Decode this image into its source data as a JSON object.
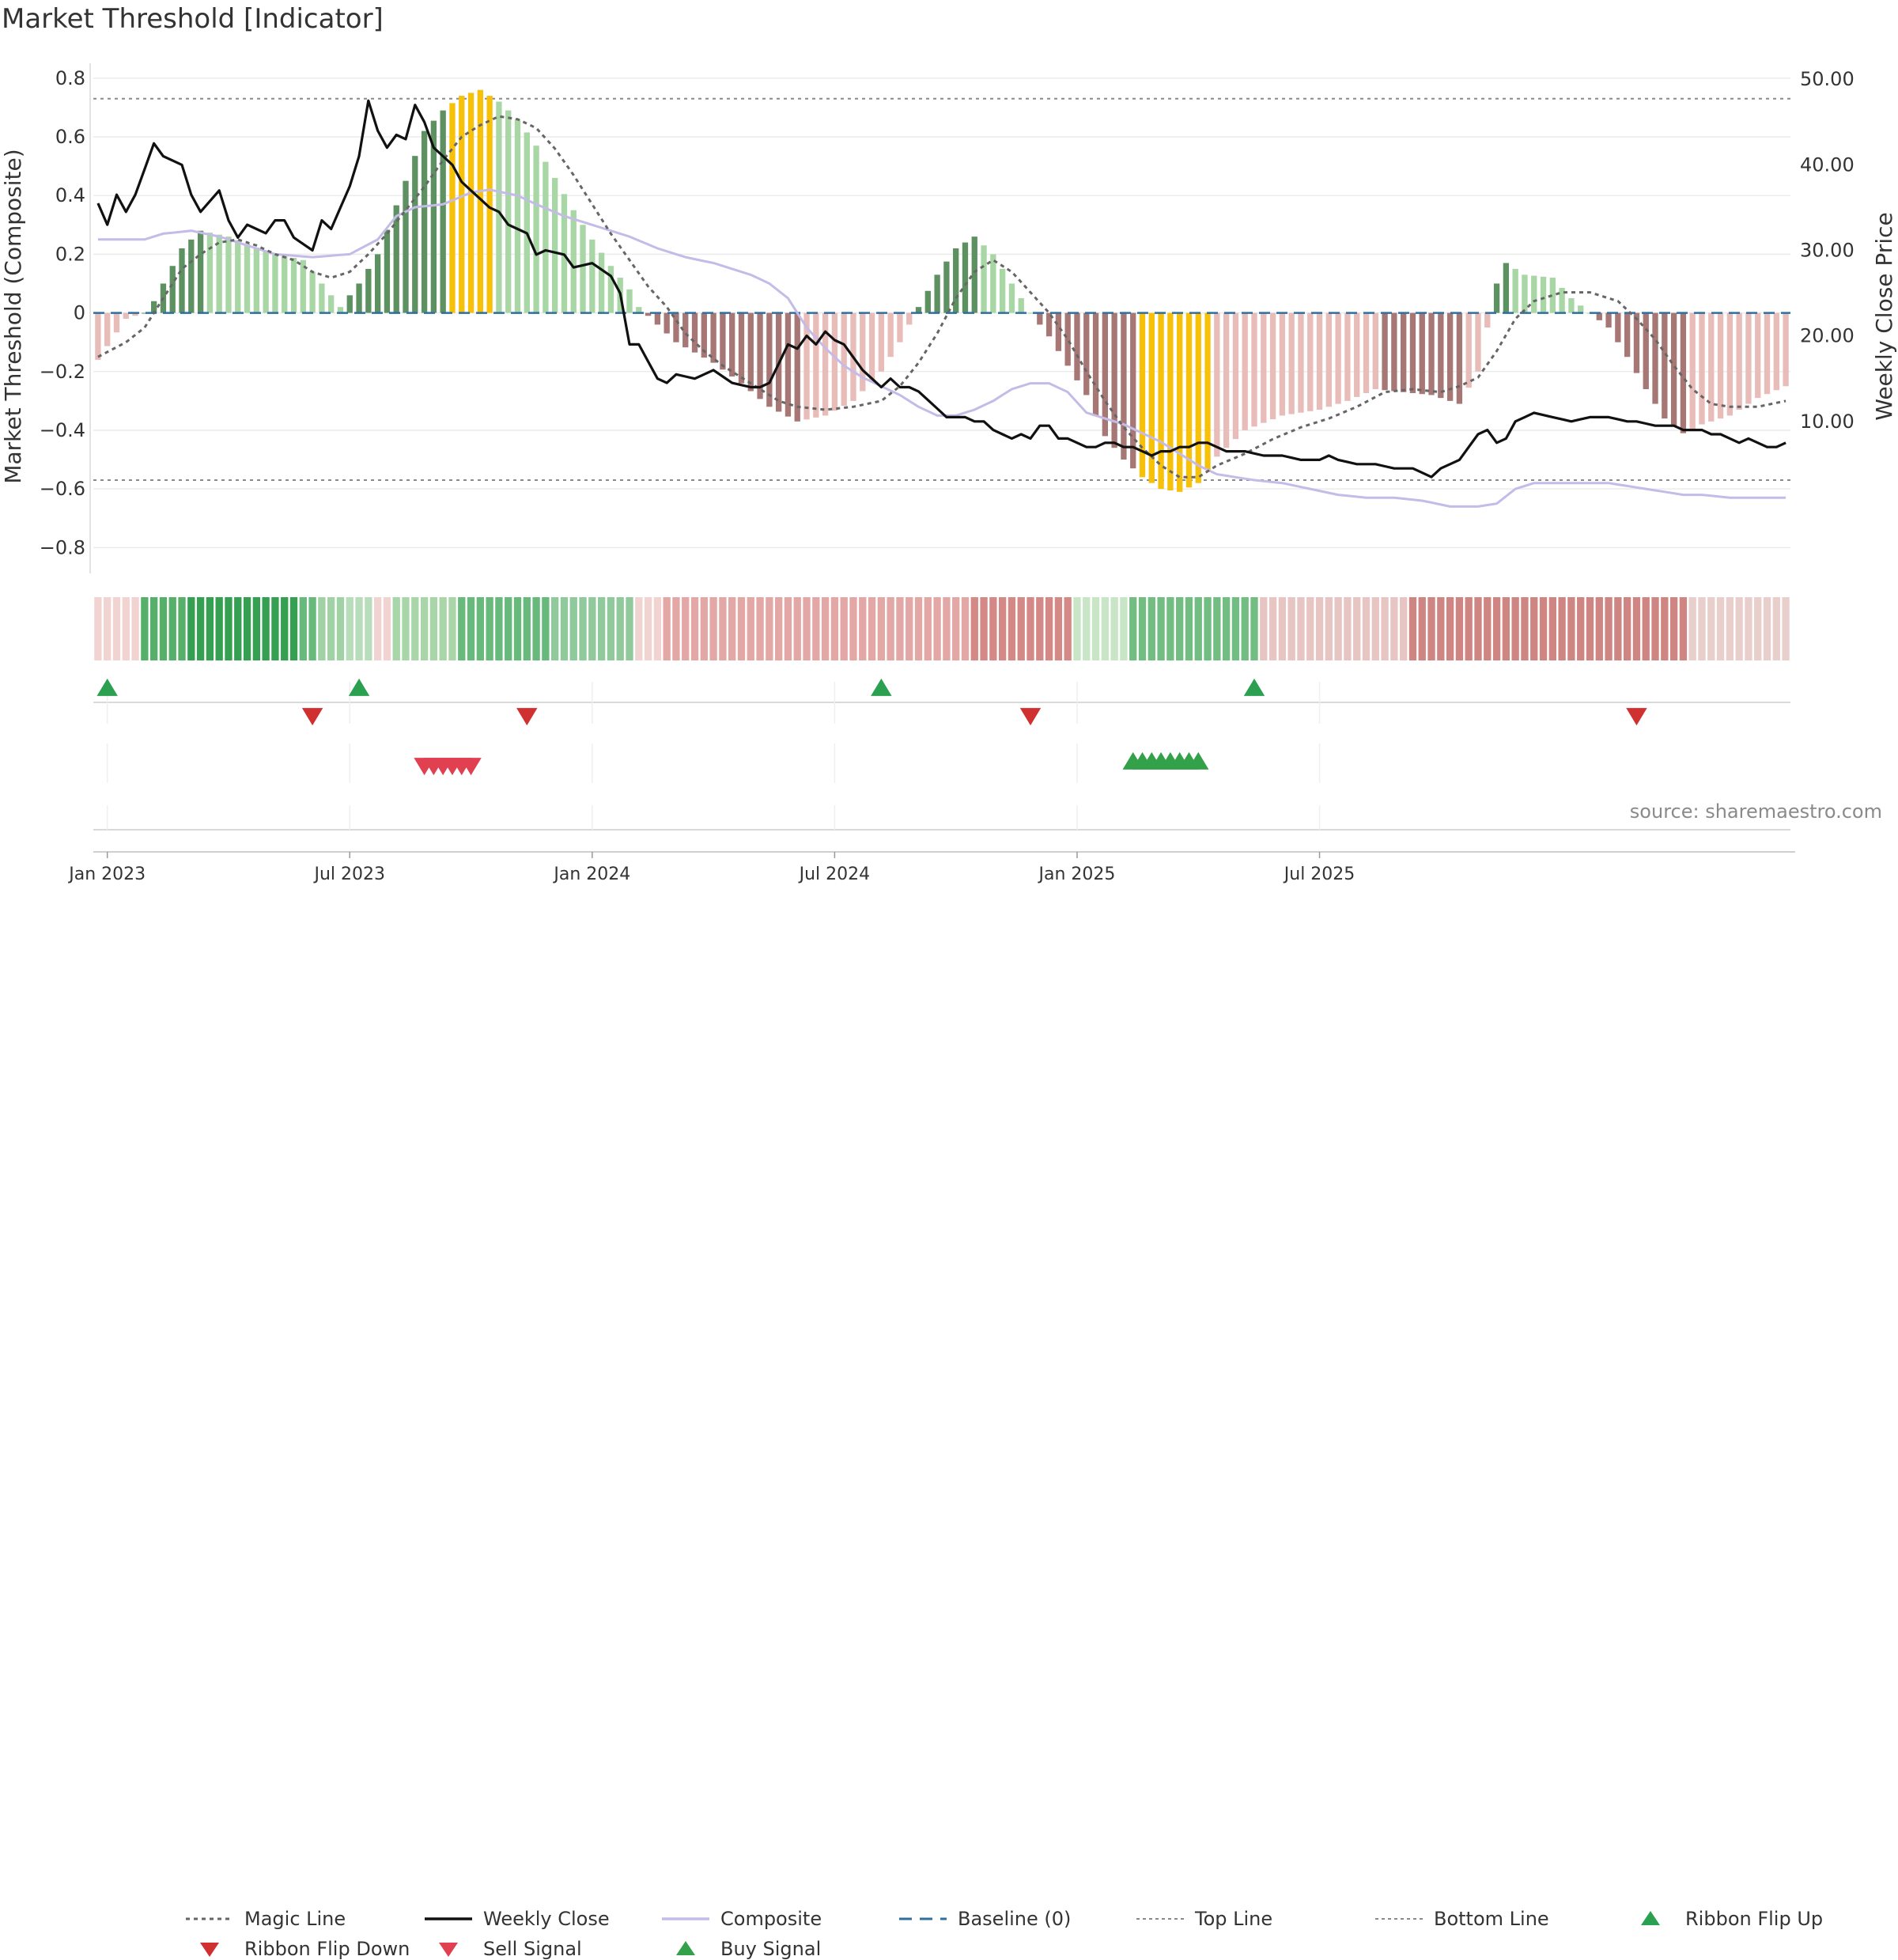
{
  "title": "Market Threshold [Indicator]",
  "source": "source: sharemaestro.com",
  "legend": [
    {
      "label": "Magic Line",
      "kind": "dotted",
      "color": "#666666"
    },
    {
      "label": "Weekly Close",
      "kind": "solid",
      "color": "#111111"
    },
    {
      "label": "Composite",
      "kind": "solid",
      "color": "#c4bbe8"
    },
    {
      "label": "Baseline (0)",
      "kind": "dashed",
      "color": "#2f6f9f"
    },
    {
      "label": "Top Line",
      "kind": "dotted-thin",
      "color": "#8a8a8a"
    },
    {
      "label": "Bottom Line",
      "kind": "dotted-thin",
      "color": "#8a8a8a"
    },
    {
      "label": "Ribbon Flip Up",
      "kind": "tri-up",
      "color": "#2aa050"
    },
    {
      "label": "Ribbon Flip Down",
      "kind": "tri-down",
      "color": "#d03030"
    },
    {
      "label": "Sell Signal",
      "kind": "tri-down",
      "color": "#e04050"
    },
    {
      "label": "Buy Signal",
      "kind": "tri-up",
      "color": "#33a04a"
    }
  ],
  "chart_data": {
    "type": "bar",
    "x_ticks": [
      "Jan 2023",
      "Jul 2023",
      "Jan 2024",
      "Jul 2024",
      "Jan 2025",
      "Jul 2025"
    ],
    "ylabel": "Market Threshold (Composite)",
    "ylabel_right": "Weekly Close Price",
    "ylim": [
      -0.88,
      0.84
    ],
    "ylim_right": [
      -7.5,
      51.5
    ],
    "y_ticks": [
      "0.8",
      "0.6",
      "0.4",
      "0.2",
      "0",
      "−0.2",
      "−0.4",
      "−0.6",
      "−0.8"
    ],
    "y_ticks_right": [
      "50.00",
      "40.00",
      "30.00",
      "20.00",
      "10.00"
    ],
    "top_line": 0.73,
    "bottom_line": -0.57,
    "baseline": 0,
    "colors": {
      "up_strong": "#5e9162",
      "up_weak": "#a8d6a4",
      "down_strong": "#a67775",
      "down_weak": "#e8bcb8",
      "extreme": "#f7c10a",
      "weekly_close": "#111111",
      "composite": "#c4bbe8",
      "magic": "#666666",
      "ribbon_up": "#2aa050",
      "ribbon_down": "#d03030",
      "sell": "#e04050",
      "buy": "#33a04a"
    },
    "bars_ctrl": [
      [
        0,
        -0.16
      ],
      [
        3,
        -0.02
      ],
      [
        5,
        0.0
      ],
      [
        6,
        0.04
      ],
      [
        9,
        0.22
      ],
      [
        11,
        0.28
      ],
      [
        14,
        0.26
      ],
      [
        18,
        0.21
      ],
      [
        22,
        0.18
      ],
      [
        26,
        0.02
      ],
      [
        28,
        0.1
      ],
      [
        30,
        0.2
      ],
      [
        33,
        0.45
      ],
      [
        35,
        0.62
      ],
      [
        37,
        0.69
      ],
      [
        39,
        0.74
      ],
      [
        41,
        0.76
      ],
      [
        43,
        0.72
      ],
      [
        45,
        0.66
      ],
      [
        47,
        0.57
      ],
      [
        49,
        0.46
      ],
      [
        51,
        0.35
      ],
      [
        53,
        0.25
      ],
      [
        55,
        0.16
      ],
      [
        57,
        0.08
      ],
      [
        58,
        0.02
      ],
      [
        60,
        -0.04
      ],
      [
        62,
        -0.1
      ],
      [
        66,
        -0.17
      ],
      [
        69,
        -0.24
      ],
      [
        72,
        -0.32
      ],
      [
        75,
        -0.37
      ],
      [
        78,
        -0.35
      ],
      [
        81,
        -0.3
      ],
      [
        84,
        -0.2
      ],
      [
        86,
        -0.1
      ],
      [
        88,
        0.02
      ],
      [
        90,
        0.13
      ],
      [
        92,
        0.22
      ],
      [
        94,
        0.26
      ],
      [
        96,
        0.2
      ],
      [
        98,
        0.1
      ],
      [
        100,
        0.0
      ],
      [
        102,
        -0.08
      ],
      [
        104,
        -0.18
      ],
      [
        106,
        -0.28
      ],
      [
        108,
        -0.42
      ],
      [
        110,
        -0.5
      ],
      [
        112,
        -0.56
      ],
      [
        114,
        -0.6
      ],
      [
        116,
        -0.61
      ],
      [
        118,
        -0.58
      ],
      [
        120,
        -0.49
      ],
      [
        123,
        -0.4
      ],
      [
        127,
        -0.35
      ],
      [
        131,
        -0.33
      ],
      [
        134,
        -0.3
      ],
      [
        137,
        -0.26
      ],
      [
        140,
        -0.27
      ],
      [
        143,
        -0.28
      ],
      [
        146,
        -0.31
      ],
      [
        148,
        -0.2
      ],
      [
        150,
        0.1
      ],
      [
        151,
        0.17
      ],
      [
        153,
        0.13
      ],
      [
        156,
        0.12
      ],
      [
        158,
        0.05
      ],
      [
        160,
        0.0
      ],
      [
        162,
        -0.05
      ],
      [
        164,
        -0.15
      ],
      [
        166,
        -0.26
      ],
      [
        168,
        -0.36
      ],
      [
        170,
        -0.41
      ],
      [
        172,
        -0.38
      ],
      [
        175,
        -0.35
      ],
      [
        178,
        -0.29
      ],
      [
        181,
        -0.25
      ]
    ],
    "extreme_weeks": [
      [
        38,
        42
      ],
      [
        112,
        119
      ]
    ],
    "weekly_close_ctrl": [
      [
        0,
        35.5
      ],
      [
        1,
        33.0
      ],
      [
        2,
        36.5
      ],
      [
        3,
        34.5
      ],
      [
        4,
        36.5
      ],
      [
        6,
        42.5
      ],
      [
        7,
        41.0
      ],
      [
        9,
        40.0
      ],
      [
        10,
        36.5
      ],
      [
        11,
        34.5
      ],
      [
        13,
        37.0
      ],
      [
        14,
        33.5
      ],
      [
        15,
        31.5
      ],
      [
        16,
        33.0
      ],
      [
        17,
        32.5
      ],
      [
        18,
        32.0
      ],
      [
        19,
        33.5
      ],
      [
        20,
        33.5
      ],
      [
        21,
        31.5
      ],
      [
        23,
        30.0
      ],
      [
        24,
        33.5
      ],
      [
        25,
        32.5
      ],
      [
        27,
        37.5
      ],
      [
        28,
        41.0
      ],
      [
        29,
        47.5
      ],
      [
        30,
        44.0
      ],
      [
        31,
        42.0
      ],
      [
        32,
        43.5
      ],
      [
        33,
        43.0
      ],
      [
        34,
        47.0
      ],
      [
        35,
        45.0
      ],
      [
        36,
        42.0
      ],
      [
        38,
        40.0
      ],
      [
        39,
        38.0
      ],
      [
        40,
        37.0
      ],
      [
        41,
        36.0
      ],
      [
        42,
        35.0
      ],
      [
        43,
        34.5
      ],
      [
        44,
        33.0
      ],
      [
        46,
        32.0
      ],
      [
        47,
        29.5
      ],
      [
        48,
        30.0
      ],
      [
        50,
        29.5
      ],
      [
        51,
        28.0
      ],
      [
        53,
        28.5
      ],
      [
        55,
        27.0
      ],
      [
        56,
        25.0
      ],
      [
        57,
        19.0
      ],
      [
        58,
        19.0
      ],
      [
        60,
        15.0
      ],
      [
        61,
        14.5
      ],
      [
        62,
        15.5
      ],
      [
        64,
        15.0
      ],
      [
        65,
        15.5
      ],
      [
        66,
        16.0
      ],
      [
        68,
        14.5
      ],
      [
        70,
        14.0
      ],
      [
        71,
        14.0
      ],
      [
        72,
        14.5
      ],
      [
        74,
        19.0
      ],
      [
        75,
        18.5
      ],
      [
        76,
        20.0
      ],
      [
        77,
        19.0
      ],
      [
        78,
        20.5
      ],
      [
        79,
        19.5
      ],
      [
        80,
        19.0
      ],
      [
        81,
        17.5
      ],
      [
        82,
        16.0
      ],
      [
        83,
        15.0
      ],
      [
        84,
        14.0
      ],
      [
        85,
        15.0
      ],
      [
        86,
        14.0
      ],
      [
        87,
        14.0
      ],
      [
        88,
        13.5
      ],
      [
        89,
        12.5
      ],
      [
        90,
        11.5
      ],
      [
        91,
        10.5
      ],
      [
        93,
        10.5
      ],
      [
        94,
        10.0
      ],
      [
        95,
        10.0
      ],
      [
        96,
        9.0
      ],
      [
        97,
        8.5
      ],
      [
        98,
        8.0
      ],
      [
        99,
        8.5
      ],
      [
        100,
        8.0
      ],
      [
        101,
        9.5
      ],
      [
        102,
        9.5
      ],
      [
        103,
        8.0
      ],
      [
        104,
        8.0
      ],
      [
        105,
        7.5
      ],
      [
        106,
        7.0
      ],
      [
        107,
        7.0
      ],
      [
        108,
        7.5
      ],
      [
        109,
        7.5
      ],
      [
        110,
        7.0
      ],
      [
        111,
        7.0
      ],
      [
        112,
        6.5
      ],
      [
        113,
        6.0
      ],
      [
        114,
        6.5
      ],
      [
        115,
        6.5
      ],
      [
        116,
        7.0
      ],
      [
        117,
        7.0
      ],
      [
        118,
        7.5
      ],
      [
        119,
        7.5
      ],
      [
        120,
        7.0
      ],
      [
        121,
        6.5
      ],
      [
        123,
        6.5
      ],
      [
        125,
        6.0
      ],
      [
        127,
        6.0
      ],
      [
        129,
        5.5
      ],
      [
        131,
        5.5
      ],
      [
        132,
        6.0
      ],
      [
        133,
        5.5
      ],
      [
        135,
        5.0
      ],
      [
        137,
        5.0
      ],
      [
        139,
        4.5
      ],
      [
        141,
        4.5
      ],
      [
        142,
        4.0
      ],
      [
        143,
        3.5
      ],
      [
        144,
        4.5
      ],
      [
        146,
        5.5
      ],
      [
        148,
        8.5
      ],
      [
        149,
        9.0
      ],
      [
        150,
        7.5
      ],
      [
        151,
        8.0
      ],
      [
        152,
        10.0
      ],
      [
        154,
        11.0
      ],
      [
        156,
        10.5
      ],
      [
        158,
        10.0
      ],
      [
        160,
        10.5
      ],
      [
        162,
        10.5
      ],
      [
        164,
        10.0
      ],
      [
        165,
        10.0
      ],
      [
        167,
        9.5
      ],
      [
        169,
        9.5
      ],
      [
        170,
        9.0
      ],
      [
        172,
        9.0
      ],
      [
        173,
        8.5
      ],
      [
        174,
        8.5
      ],
      [
        175,
        8.0
      ],
      [
        176,
        7.5
      ],
      [
        177,
        8.0
      ],
      [
        178,
        7.5
      ],
      [
        179,
        7.0
      ],
      [
        180,
        7.0
      ],
      [
        181,
        7.5
      ]
    ],
    "composite_ctrl": [
      [
        0,
        0.25
      ],
      [
        5,
        0.25
      ],
      [
        7,
        0.27
      ],
      [
        10,
        0.28
      ],
      [
        13,
        0.26
      ],
      [
        16,
        0.23
      ],
      [
        19,
        0.2
      ],
      [
        23,
        0.19
      ],
      [
        27,
        0.2
      ],
      [
        30,
        0.25
      ],
      [
        32,
        0.33
      ],
      [
        34,
        0.36
      ],
      [
        37,
        0.37
      ],
      [
        40,
        0.41
      ],
      [
        42,
        0.42
      ],
      [
        45,
        0.4
      ],
      [
        47,
        0.37
      ],
      [
        50,
        0.33
      ],
      [
        53,
        0.3
      ],
      [
        57,
        0.26
      ],
      [
        60,
        0.22
      ],
      [
        63,
        0.19
      ],
      [
        66,
        0.17
      ],
      [
        68,
        0.15
      ],
      [
        70,
        0.13
      ],
      [
        72,
        0.1
      ],
      [
        74,
        0.05
      ],
      [
        76,
        -0.05
      ],
      [
        78,
        -0.12
      ],
      [
        80,
        -0.18
      ],
      [
        82,
        -0.22
      ],
      [
        84,
        -0.25
      ],
      [
        86,
        -0.28
      ],
      [
        88,
        -0.32
      ],
      [
        90,
        -0.35
      ],
      [
        92,
        -0.35
      ],
      [
        94,
        -0.33
      ],
      [
        96,
        -0.3
      ],
      [
        98,
        -0.26
      ],
      [
        100,
        -0.24
      ],
      [
        102,
        -0.24
      ],
      [
        104,
        -0.27
      ],
      [
        106,
        -0.34
      ],
      [
        108,
        -0.36
      ],
      [
        110,
        -0.38
      ],
      [
        112,
        -0.41
      ],
      [
        114,
        -0.44
      ],
      [
        116,
        -0.48
      ],
      [
        118,
        -0.52
      ],
      [
        120,
        -0.55
      ],
      [
        122,
        -0.56
      ],
      [
        124,
        -0.57
      ],
      [
        127,
        -0.58
      ],
      [
        130,
        -0.6
      ],
      [
        133,
        -0.62
      ],
      [
        136,
        -0.63
      ],
      [
        139,
        -0.63
      ],
      [
        142,
        -0.64
      ],
      [
        145,
        -0.66
      ],
      [
        148,
        -0.66
      ],
      [
        150,
        -0.65
      ],
      [
        152,
        -0.6
      ],
      [
        154,
        -0.58
      ],
      [
        156,
        -0.58
      ],
      [
        158,
        -0.58
      ],
      [
        160,
        -0.58
      ],
      [
        162,
        -0.58
      ],
      [
        164,
        -0.59
      ],
      [
        166,
        -0.6
      ],
      [
        168,
        -0.61
      ],
      [
        170,
        -0.62
      ],
      [
        172,
        -0.62
      ],
      [
        175,
        -0.63
      ],
      [
        178,
        -0.63
      ],
      [
        181,
        -0.63
      ]
    ],
    "magic_ctrl": [
      [
        0,
        -0.15
      ],
      [
        3,
        -0.1
      ],
      [
        5,
        -0.05
      ],
      [
        7,
        0.05
      ],
      [
        9,
        0.15
      ],
      [
        11,
        0.2
      ],
      [
        13,
        0.24
      ],
      [
        15,
        0.25
      ],
      [
        17,
        0.23
      ],
      [
        19,
        0.2
      ],
      [
        21,
        0.18
      ],
      [
        23,
        0.14
      ],
      [
        25,
        0.12
      ],
      [
        27,
        0.14
      ],
      [
        29,
        0.2
      ],
      [
        31,
        0.27
      ],
      [
        33,
        0.35
      ],
      [
        35,
        0.43
      ],
      [
        37,
        0.52
      ],
      [
        39,
        0.6
      ],
      [
        41,
        0.64
      ],
      [
        43,
        0.67
      ],
      [
        45,
        0.66
      ],
      [
        47,
        0.63
      ],
      [
        49,
        0.56
      ],
      [
        51,
        0.47
      ],
      [
        53,
        0.37
      ],
      [
        55,
        0.27
      ],
      [
        57,
        0.18
      ],
      [
        59,
        0.09
      ],
      [
        61,
        0.02
      ],
      [
        63,
        -0.07
      ],
      [
        65,
        -0.13
      ],
      [
        67,
        -0.18
      ],
      [
        69,
        -0.22
      ],
      [
        71,
        -0.26
      ],
      [
        73,
        -0.3
      ],
      [
        75,
        -0.32
      ],
      [
        78,
        -0.33
      ],
      [
        81,
        -0.32
      ],
      [
        84,
        -0.3
      ],
      [
        86,
        -0.25
      ],
      [
        88,
        -0.17
      ],
      [
        90,
        -0.07
      ],
      [
        92,
        0.05
      ],
      [
        94,
        0.14
      ],
      [
        96,
        0.18
      ],
      [
        98,
        0.14
      ],
      [
        100,
        0.07
      ],
      [
        102,
        0.0
      ],
      [
        104,
        -0.09
      ],
      [
        106,
        -0.2
      ],
      [
        108,
        -0.3
      ],
      [
        110,
        -0.39
      ],
      [
        112,
        -0.46
      ],
      [
        114,
        -0.52
      ],
      [
        116,
        -0.56
      ],
      [
        118,
        -0.56
      ],
      [
        120,
        -0.52
      ],
      [
        123,
        -0.48
      ],
      [
        126,
        -0.43
      ],
      [
        129,
        -0.39
      ],
      [
        132,
        -0.36
      ],
      [
        135,
        -0.32
      ],
      [
        138,
        -0.27
      ],
      [
        141,
        -0.26
      ],
      [
        144,
        -0.27
      ],
      [
        146,
        -0.25
      ],
      [
        148,
        -0.22
      ],
      [
        150,
        -0.13
      ],
      [
        152,
        -0.02
      ],
      [
        154,
        0.04
      ],
      [
        157,
        0.07
      ],
      [
        160,
        0.07
      ],
      [
        163,
        0.04
      ],
      [
        165,
        -0.02
      ],
      [
        167,
        -0.09
      ],
      [
        169,
        -0.18
      ],
      [
        171,
        -0.26
      ],
      [
        173,
        -0.31
      ],
      [
        175,
        -0.32
      ],
      [
        178,
        -0.32
      ],
      [
        181,
        -0.3
      ]
    ],
    "ribbon_colors": [
      [
        0,
        4,
        "#f1d4d2"
      ],
      [
        5,
        9,
        "#56b069"
      ],
      [
        10,
        21,
        "#36a052"
      ],
      [
        22,
        23,
        "#68b97c"
      ],
      [
        24,
        26,
        "#a0d2a5"
      ],
      [
        27,
        29,
        "#b8ddbb"
      ],
      [
        30,
        31,
        "#f1d4d2"
      ],
      [
        32,
        38,
        "#a8d6a8"
      ],
      [
        39,
        48,
        "#68b97c"
      ],
      [
        49,
        57,
        "#8fc99c"
      ],
      [
        58,
        60,
        "#f1d4d2"
      ],
      [
        61,
        93,
        "#e3a7a5"
      ],
      [
        94,
        104,
        "#d48986"
      ],
      [
        105,
        110,
        "#c8e5c6"
      ],
      [
        111,
        124,
        "#72bd82"
      ],
      [
        125,
        140,
        "#e6c5c3"
      ],
      [
        141,
        170,
        "#cf8581"
      ],
      [
        171,
        183,
        "#e9cfcc"
      ]
    ],
    "ribbon_flip_up_weeks": [
      1,
      28,
      84,
      124
    ],
    "ribbon_flip_down_weeks": [
      23,
      46,
      100,
      165
    ],
    "sell_signal_weeks": [
      35,
      36,
      37,
      38,
      39,
      40
    ],
    "buy_signal_weeks": [
      111,
      112,
      113,
      114,
      115,
      116,
      117,
      118
    ]
  }
}
